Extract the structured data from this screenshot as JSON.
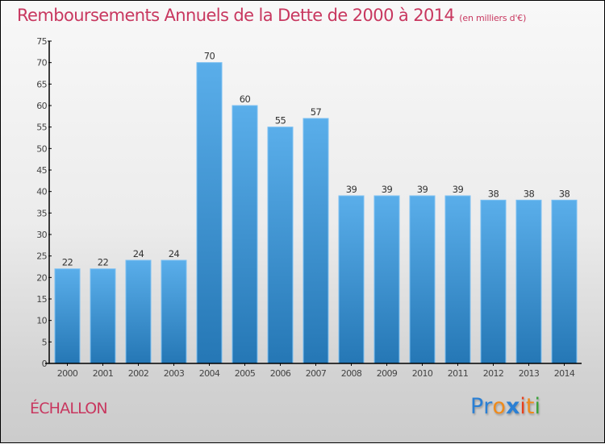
{
  "header": {
    "title": "Remboursements Annuels de la Dette de 2000 à 2014",
    "subtitle": "(en milliers d'€)"
  },
  "footer": {
    "commune": "ÉCHALLON",
    "logo_letters": [
      {
        "char": "P",
        "color": "#2a7fd4"
      },
      {
        "char": "r",
        "color": "#2a7fd4"
      },
      {
        "char": "o",
        "color": "#ef8a1a"
      },
      {
        "char": "x",
        "color": "#2a7fd4"
      },
      {
        "char": "i",
        "color": "#e8401c"
      },
      {
        "char": "t",
        "color": "#ef8a1a"
      },
      {
        "char": "i",
        "color": "#3aa23a"
      }
    ]
  },
  "colors": {
    "title": "#c8375f",
    "bar_top": "#5aaeea",
    "bar_bottom": "#2577b5",
    "bar_edge": "#7cc0f2",
    "axis": "#000000"
  },
  "chart_data": {
    "type": "bar",
    "title": "Remboursements Annuels de la Dette de 2000 à 2014",
    "subtitle": "(en milliers d'€)",
    "xlabel": "",
    "ylabel": "",
    "categories": [
      "2000",
      "2001",
      "2002",
      "2003",
      "2004",
      "2005",
      "2006",
      "2007",
      "2008",
      "2009",
      "2010",
      "2011",
      "2012",
      "2013",
      "2014"
    ],
    "values": [
      22,
      22,
      24,
      24,
      70,
      60,
      55,
      57,
      39,
      39,
      39,
      39,
      38,
      38,
      38
    ],
    "ylim": [
      0,
      75
    ],
    "yticks": [
      0,
      5,
      10,
      15,
      20,
      25,
      30,
      35,
      40,
      45,
      50,
      55,
      60,
      65,
      70,
      75
    ],
    "grid": false,
    "legend": "none",
    "data_labels": true
  }
}
